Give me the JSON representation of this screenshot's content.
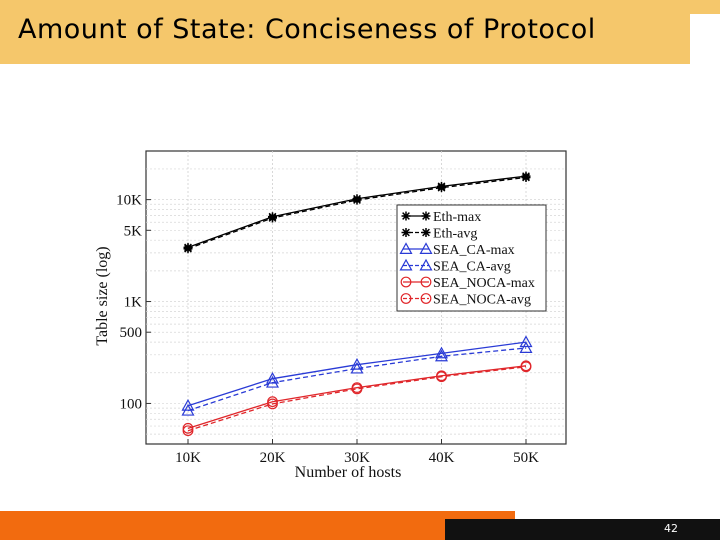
{
  "slide": {
    "title": "Amount of State: Conciseness of Protocol",
    "page_number": "42",
    "colors": {
      "title_bar": "#f5c76b",
      "footer_orange": "#f26b0f",
      "footer_dark": "#111111"
    }
  },
  "chart_data": {
    "type": "line",
    "title": "",
    "xlabel": "Number of hosts",
    "ylabel": "Table size (log)",
    "yscale": "log",
    "grid": true,
    "legend_position": "right",
    "categories": [
      "10K",
      "20K",
      "30K",
      "40K",
      "50K"
    ],
    "x": [
      10000,
      20000,
      30000,
      40000,
      50000
    ],
    "y_ticks": [
      {
        "value": 100,
        "label": "100"
      },
      {
        "value": 500,
        "label": "500"
      },
      {
        "value": 1000,
        "label": "1K"
      },
      {
        "value": 5000,
        "label": "5K"
      },
      {
        "value": 10000,
        "label": "10K"
      }
    ],
    "ylim": [
      40,
      30000
    ],
    "series": [
      {
        "name": "Eth-max",
        "values": [
          3400,
          6800,
          10200,
          13500,
          17000
        ],
        "color": "#000000",
        "marker": "star",
        "dash": "solid"
      },
      {
        "name": "Eth-avg",
        "values": [
          3300,
          6600,
          9900,
          13100,
          16500
        ],
        "color": "#000000",
        "marker": "star",
        "dash": "dashed"
      },
      {
        "name": "SEA_CA-max",
        "values": [
          95,
          175,
          240,
          310,
          400
        ],
        "color": "#2a3bd6",
        "marker": "triangle",
        "dash": "solid"
      },
      {
        "name": "SEA_CA-avg",
        "values": [
          85,
          160,
          220,
          290,
          350
        ],
        "color": "#2a3bd6",
        "marker": "triangle",
        "dash": "dashed"
      },
      {
        "name": "SEA_NOCA-max",
        "values": [
          57,
          104,
          143,
          187,
          234
        ],
        "color": "#e0262a",
        "marker": "circle",
        "dash": "solid"
      },
      {
        "name": "SEA_NOCA-avg",
        "values": [
          54,
          99,
          139,
          183,
          229
        ],
        "color": "#e0262a",
        "marker": "circle",
        "dash": "dashed"
      }
    ]
  }
}
